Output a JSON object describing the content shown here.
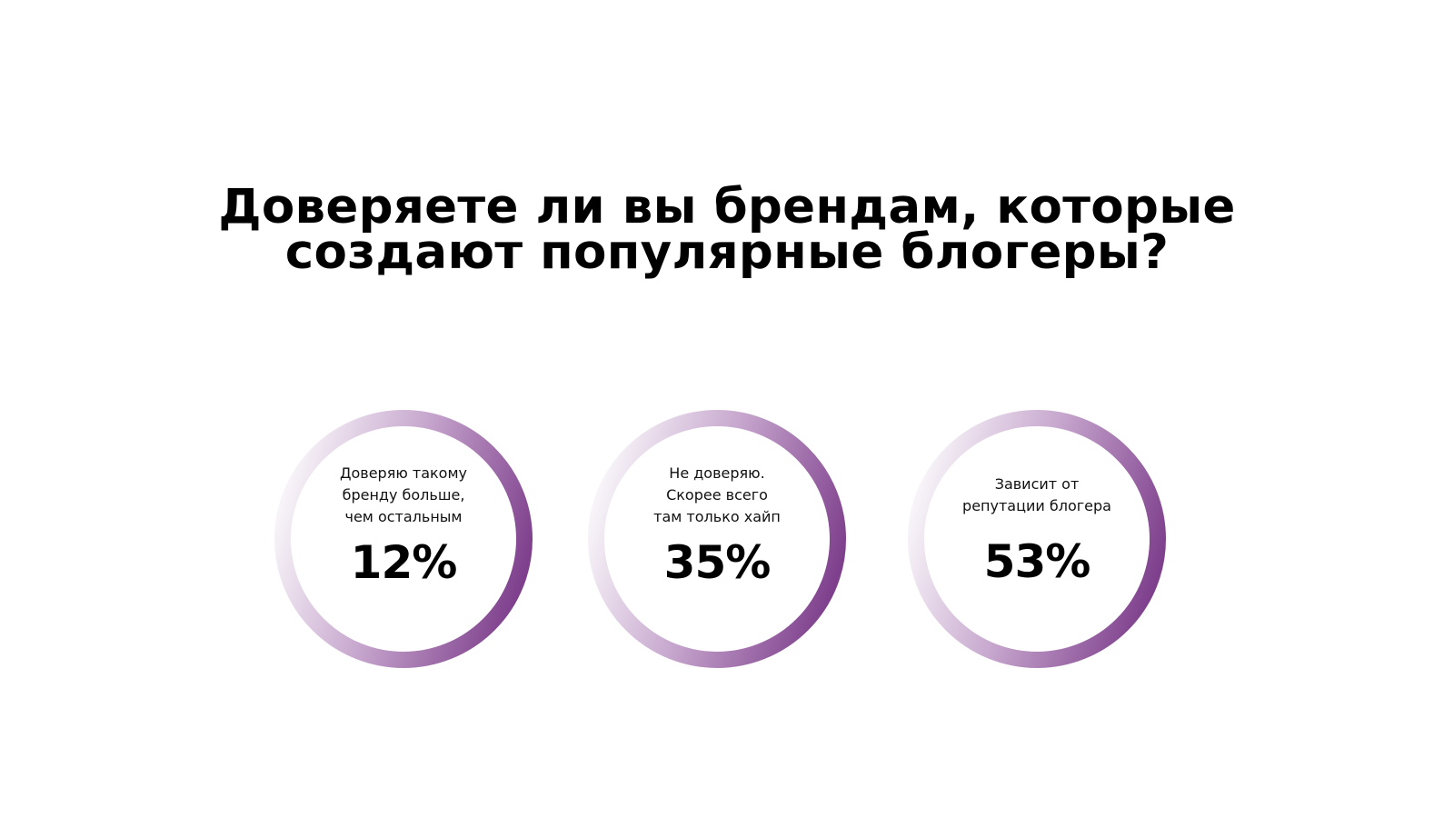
{
  "slide": {
    "title_lines": [
      "Доверяете ли вы брендам, которые",
      "создают популярные блогеры?"
    ]
  },
  "colors": {
    "ring_start": "#f7f3f8",
    "ring_mid": "#c7a7ce",
    "ring_end": "#7e3f8c",
    "text": "#000000",
    "background": "#ffffff"
  },
  "chart_data": {
    "type": "pie",
    "title": "Доверяете ли вы брендам, которые создают популярные блогеры?",
    "unit": "%",
    "categories": [
      "Доверяю такому бренду больше, чем остальным",
      "Не доверяю. Скорее всего там только хайп",
      "Зависит от репутации блогера"
    ],
    "values": [
      12,
      35,
      53
    ],
    "items": [
      {
        "label_lines": [
          "Доверяю такому",
          "бренду больше,",
          "чем остальным"
        ],
        "value": 12,
        "display": "12%"
      },
      {
        "label_lines": [
          "Не доверяю.",
          "Скорее всего",
          "там только хайп"
        ],
        "value": 35,
        "display": "35%"
      },
      {
        "label_lines": [
          "Зависит от",
          "репутации блогера"
        ],
        "value": 53,
        "display": "53%"
      }
    ]
  }
}
